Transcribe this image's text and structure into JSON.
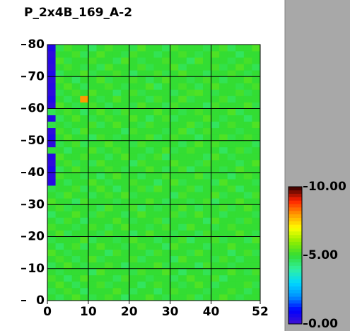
{
  "chart_data": {
    "type": "heatmap",
    "title": "P_2x4B_169_A-2",
    "xbins": [
      0,
      2,
      4,
      6,
      8,
      10,
      12,
      14,
      16,
      18,
      20,
      22,
      24,
      26,
      28,
      30,
      32,
      34,
      36,
      38,
      40,
      42,
      44,
      46,
      48,
      50,
      52
    ],
    "ybins": [
      0,
      2,
      4,
      6,
      8,
      10,
      12,
      14,
      16,
      18,
      20,
      22,
      24,
      26,
      28,
      30,
      32,
      34,
      36,
      38,
      40,
      42,
      44,
      46,
      48,
      50,
      52,
      54,
      56,
      58,
      60,
      62,
      64,
      66,
      68,
      70,
      72,
      74,
      76,
      78,
      80
    ],
    "xlim": [
      0,
      52
    ],
    "xticks": [
      0,
      10,
      20,
      30,
      40,
      52
    ],
    "ylim": [
      0,
      80
    ],
    "yticks": [
      0,
      10,
      20,
      30,
      40,
      50,
      60,
      70,
      80
    ],
    "zlim": [
      0,
      10
    ],
    "zticks": [
      {
        "value": 0,
        "label": "0.00"
      },
      {
        "value": 5,
        "label": "5.00"
      },
      {
        "value": 10,
        "label": "10.00"
      }
    ],
    "colormap": [
      "#4010d0",
      "#0000ff",
      "#0090ff",
      "#00d8ff",
      "#30f0a0",
      "#33dd33",
      "#90ee00",
      "#ffff00",
      "#ff9900",
      "#ff2000",
      "#300000"
    ],
    "grid": true,
    "z": [
      [
        5,
        4.7,
        5,
        5.3,
        5,
        4.8,
        5,
        5.2,
        5,
        4.6,
        5,
        5,
        5.3,
        5,
        4.8,
        5,
        5,
        5.2,
        4.7,
        5,
        5,
        5.3,
        5,
        4.8,
        5,
        5
      ],
      [
        4.8,
        5,
        5.2,
        5,
        4.6,
        5,
        5,
        5,
        5.3,
        5,
        4.7,
        5,
        5,
        4.6,
        5,
        5.2,
        5,
        5,
        5,
        4.8,
        5,
        5,
        5.2,
        5,
        4.7,
        5
      ],
      [
        5,
        5.3,
        5,
        4.7,
        5,
        5,
        5.2,
        4.8,
        5,
        5,
        5,
        4.6,
        5,
        5.2,
        5,
        5,
        4.8,
        5,
        5.3,
        5,
        4.7,
        5,
        5,
        5,
        5.2,
        4.8
      ],
      [
        5.2,
        5,
        4.6,
        5,
        5.3,
        5,
        5,
        5,
        4.7,
        5.2,
        5,
        5,
        4.8,
        5,
        5,
        4.7,
        5,
        5.3,
        5,
        5,
        5.2,
        4.6,
        5,
        5,
        5,
        5
      ],
      [
        5,
        4.8,
        5,
        5,
        5,
        4.6,
        5.3,
        5,
        5,
        5,
        4.8,
        5.2,
        5,
        5,
        5.3,
        5,
        4.6,
        5,
        5,
        4.7,
        5,
        5,
        5.3,
        5,
        4.8,
        5.2
      ],
      [
        4.7,
        5,
        5.3,
        5,
        4.8,
        5,
        5,
        5.2,
        5,
        4.6,
        5,
        5,
        5,
        5.3,
        4.8,
        5,
        5,
        5,
        4.6,
        5.2,
        5,
        5,
        4.8,
        5,
        5,
        5
      ],
      [
        5,
        5.2,
        5,
        4.7,
        5,
        5.3,
        4.8,
        5,
        5,
        5,
        5.2,
        4.7,
        5,
        5,
        5,
        4.6,
        5.3,
        5,
        5,
        5,
        4.8,
        5.2,
        5,
        4.7,
        5,
        5
      ],
      [
        5.3,
        5,
        4.8,
        5,
        5,
        5,
        5,
        4.6,
        5.2,
        5,
        5,
        5,
        4.7,
        5.2,
        5,
        5,
        5,
        4.8,
        5.3,
        5,
        5,
        5,
        4.6,
        5,
        5.2,
        4.8
      ],
      [
        5,
        4.6,
        5,
        5.2,
        4.7,
        5,
        5.3,
        5,
        5,
        4.8,
        5,
        5.2,
        5,
        5,
        4.6,
        5.3,
        5,
        5,
        5,
        4.7,
        5,
        5,
        5.3,
        5,
        5,
        5
      ],
      [
        4.8,
        5,
        5,
        5,
        5.3,
        4.7,
        5,
        5,
        4.8,
        5,
        5.3,
        5,
        5,
        4.7,
        5,
        5,
        5.2,
        4.6,
        5,
        5,
        5.2,
        4.8,
        5,
        5,
        4.7,
        5.3
      ],
      [
        5,
        5.3,
        4.7,
        5,
        5,
        5,
        4.8,
        5.2,
        5,
        5,
        4.6,
        5,
        5.3,
        5,
        5,
        4.8,
        5,
        5,
        4.7,
        5.2,
        5,
        5,
        5,
        5.3,
        5,
        4.8
      ],
      [
        5.2,
        5,
        5,
        4.8,
        5,
        5.2,
        5,
        4.7,
        5,
        5.3,
        5,
        5,
        4.8,
        5,
        5.2,
        5,
        4.7,
        5.3,
        5,
        5,
        4.8,
        5,
        5.2,
        5,
        5,
        5
      ],
      [
        5,
        4.7,
        5.2,
        5,
        4.6,
        5,
        5,
        5,
        5.3,
        5,
        4.8,
        5,
        5,
        5.2,
        4.7,
        5,
        5,
        5,
        5,
        4.6,
        5.3,
        5,
        5,
        4.8,
        5.2,
        5
      ],
      [
        4.6,
        5,
        5,
        5.3,
        5,
        4.8,
        5.2,
        5,
        5,
        4.7,
        5,
        5.3,
        5,
        5,
        5,
        5.2,
        4.8,
        5,
        5.3,
        5,
        5,
        4.7,
        5,
        5,
        5,
        4.8
      ],
      [
        5,
        5.2,
        4.8,
        5,
        5,
        5,
        4.7,
        5.3,
        5,
        5,
        5.2,
        4.6,
        5,
        4.8,
        5,
        5,
        5.3,
        5,
        4.7,
        5,
        5,
        5.2,
        4.8,
        5,
        5.3,
        5
      ],
      [
        5.3,
        5,
        5,
        4.6,
        5.2,
        5,
        5,
        5,
        4.8,
        5,
        5,
        5,
        5.3,
        5,
        4.7,
        5,
        5,
        4.8,
        5,
        5.2,
        4.6,
        5,
        5,
        5.3,
        5,
        5
      ],
      [
        5,
        4.8,
        5.3,
        5,
        5,
        4.7,
        5,
        5.2,
        5,
        5.3,
        4.8,
        5,
        5,
        5,
        5,
        4.6,
        5.2,
        5,
        5,
        5,
        5.3,
        4.8,
        5,
        5,
        4.7,
        5.2
      ],
      [
        4.8,
        5,
        5,
        5.2,
        4.7,
        5,
        5.3,
        5,
        4.6,
        5,
        5,
        5.2,
        4.8,
        5.3,
        5,
        5,
        5,
        5.2,
        4.7,
        5,
        5,
        5,
        5.2,
        4.6,
        5,
        5
      ],
      [
        0.4,
        5,
        4.7,
        5,
        5,
        5.3,
        5,
        4.8,
        5,
        5,
        5.2,
        5,
        5,
        4.6,
        5,
        5.3,
        4.8,
        5,
        5,
        5,
        4.7,
        5.3,
        5,
        5,
        5,
        4.8
      ],
      [
        0.3,
        5.2,
        5,
        5,
        4.8,
        5,
        4.6,
        5,
        5.3,
        5,
        5,
        4.7,
        5,
        5,
        5.2,
        5,
        5,
        5,
        5.3,
        4.8,
        5,
        5,
        4.6,
        5,
        5.2,
        5
      ],
      [
        0.5,
        4.7,
        5,
        5.3,
        5,
        5,
        5,
        5.2,
        5,
        4.8,
        5,
        5,
        5.3,
        5,
        4.7,
        5,
        5.2,
        4.6,
        5,
        5,
        5,
        4.8,
        5,
        5.3,
        5,
        5
      ],
      [
        0.3,
        5,
        5.2,
        4.8,
        5,
        4.7,
        5.3,
        5,
        5,
        5,
        4.6,
        5.2,
        5,
        5,
        5,
        5.3,
        5,
        5,
        4.8,
        5.2,
        5,
        5,
        5,
        4.7,
        5,
        5.3
      ],
      [
        0.4,
        5.3,
        5,
        5,
        5.2,
        5,
        5,
        4.7,
        5,
        5.3,
        5,
        4.8,
        5,
        5.2,
        4.6,
        5,
        5,
        5,
        5,
        4.7,
        5.3,
        5,
        4.8,
        5,
        5,
        5
      ],
      [
        4.9,
        5,
        4.6,
        5,
        5,
        5.3,
        4.8,
        5,
        5.2,
        5,
        5,
        5,
        4.7,
        5,
        5.3,
        4.8,
        5,
        5.2,
        5,
        5,
        5,
        4.6,
        5,
        5.2,
        4.8,
        5
      ],
      [
        0.3,
        4.8,
        5,
        5.2,
        4.7,
        5,
        5,
        5.3,
        5,
        5,
        4.8,
        5.2,
        5,
        5,
        5,
        5,
        4.7,
        5,
        5.3,
        5,
        5.2,
        5,
        5,
        5,
        5,
        4.7
      ],
      [
        0.5,
        5,
        5.3,
        5,
        5,
        4.6,
        5.2,
        5,
        4.8,
        5,
        5,
        5,
        5.3,
        4.7,
        5,
        5.2,
        5,
        5,
        4.6,
        5,
        5,
        5.3,
        4.8,
        5,
        5.2,
        5
      ],
      [
        0.3,
        5.2,
        5,
        4.7,
        5.3,
        5,
        5,
        5,
        5,
        4.6,
        5.2,
        5,
        5,
        5,
        4.8,
        5,
        5.3,
        4.7,
        5,
        5.2,
        5,
        5,
        5,
        4.8,
        5,
        5
      ],
      [
        4.8,
        5,
        4.8,
        5,
        5,
        5.2,
        4.7,
        5,
        5.3,
        5,
        5,
        4.8,
        5.2,
        5,
        5,
        5,
        5,
        5.3,
        4.8,
        5,
        4.6,
        5,
        5.2,
        5,
        5,
        5.3
      ],
      [
        0.4,
        4.7,
        5,
        5.3,
        5,
        4.8,
        5,
        5.2,
        5,
        5,
        5.3,
        5,
        4.6,
        5,
        5.2,
        4.7,
        5,
        5,
        5,
        5.3,
        5,
        4.8,
        5,
        5,
        4.6,
        5
      ],
      [
        4.7,
        5,
        5.2,
        5,
        4.6,
        5,
        5.3,
        5,
        4.8,
        5.2,
        5,
        5,
        5,
        5.3,
        5,
        5,
        4.8,
        5,
        5.2,
        5,
        5,
        5,
        5.3,
        4.7,
        5,
        5
      ],
      [
        0.3,
        5.3,
        5,
        4.8,
        5,
        5.2,
        5,
        4.7,
        5,
        5,
        4.8,
        5.3,
        5,
        5,
        4.7,
        5.2,
        5,
        5,
        5,
        4.6,
        5.2,
        5,
        5,
        5,
        5.3,
        4.8
      ],
      [
        0.5,
        5,
        4.7,
        5,
        8,
        5,
        4.8,
        5,
        5.3,
        5,
        5,
        5,
        4.7,
        5.2,
        5,
        5,
        5.3,
        4.8,
        5,
        5,
        5,
        5.2,
        4.7,
        5,
        5,
        5
      ],
      [
        0.3,
        4.8,
        5,
        5.2,
        5,
        5.3,
        5,
        5,
        4.6,
        5,
        5.2,
        4.8,
        5,
        5,
        5,
        4.7,
        5,
        5.2,
        5.3,
        5,
        4.8,
        5,
        5,
        5.2,
        4.8,
        5
      ],
      [
        0.4,
        5,
        5.3,
        5,
        4.7,
        5,
        5,
        5.2,
        5,
        4.8,
        5,
        5,
        5.3,
        4.6,
        5,
        5,
        5.2,
        5,
        4.7,
        5,
        5.3,
        5,
        5,
        4.8,
        5,
        5.2
      ],
      [
        0.3,
        5.2,
        5,
        4.6,
        5,
        5,
        5.3,
        4.8,
        5,
        5,
        5.2,
        5,
        4.7,
        5,
        5.3,
        5,
        5,
        4.8,
        5,
        5.2,
        5,
        4.7,
        5,
        5,
        5.3,
        5
      ],
      [
        0.5,
        4.7,
        5,
        5,
        5.3,
        4.8,
        5,
        5,
        5.2,
        5,
        4.6,
        5,
        5,
        5.2,
        4.8,
        5,
        5.3,
        5,
        5,
        4.7,
        5,
        5,
        5.2,
        5,
        4.8,
        5
      ],
      [
        0.3,
        5,
        5.2,
        5,
        4.8,
        5,
        4.7,
        5.3,
        5,
        5,
        5,
        5.2,
        4.8,
        5,
        5,
        5.3,
        4.7,
        5,
        5,
        5,
        5.2,
        4.8,
        5,
        5.3,
        5,
        4.7
      ],
      [
        0.4,
        5.3,
        4.8,
        5,
        5,
        5.2,
        5,
        5,
        4.7,
        5.3,
        5,
        4.8,
        5,
        5,
        5.2,
        5,
        5,
        4.6,
        5.3,
        5,
        5,
        5,
        4.8,
        5,
        5.2,
        5
      ],
      [
        0.3,
        5,
        5,
        5.2,
        4.7,
        5,
        5.3,
        5,
        5,
        4.8,
        5.2,
        5,
        5,
        4.7,
        5,
        5,
        5.2,
        5,
        4.8,
        5,
        5.3,
        5,
        5,
        4.6,
        5,
        5
      ],
      [
        0.5,
        4.8,
        5.2,
        5,
        5,
        4.6,
        5,
        5.2,
        5,
        5,
        4.8,
        5.3,
        5,
        5,
        4.7,
        5.2,
        5,
        5,
        5,
        4.8,
        5,
        5.2,
        4.7,
        5,
        5,
        5.3
      ]
    ]
  }
}
